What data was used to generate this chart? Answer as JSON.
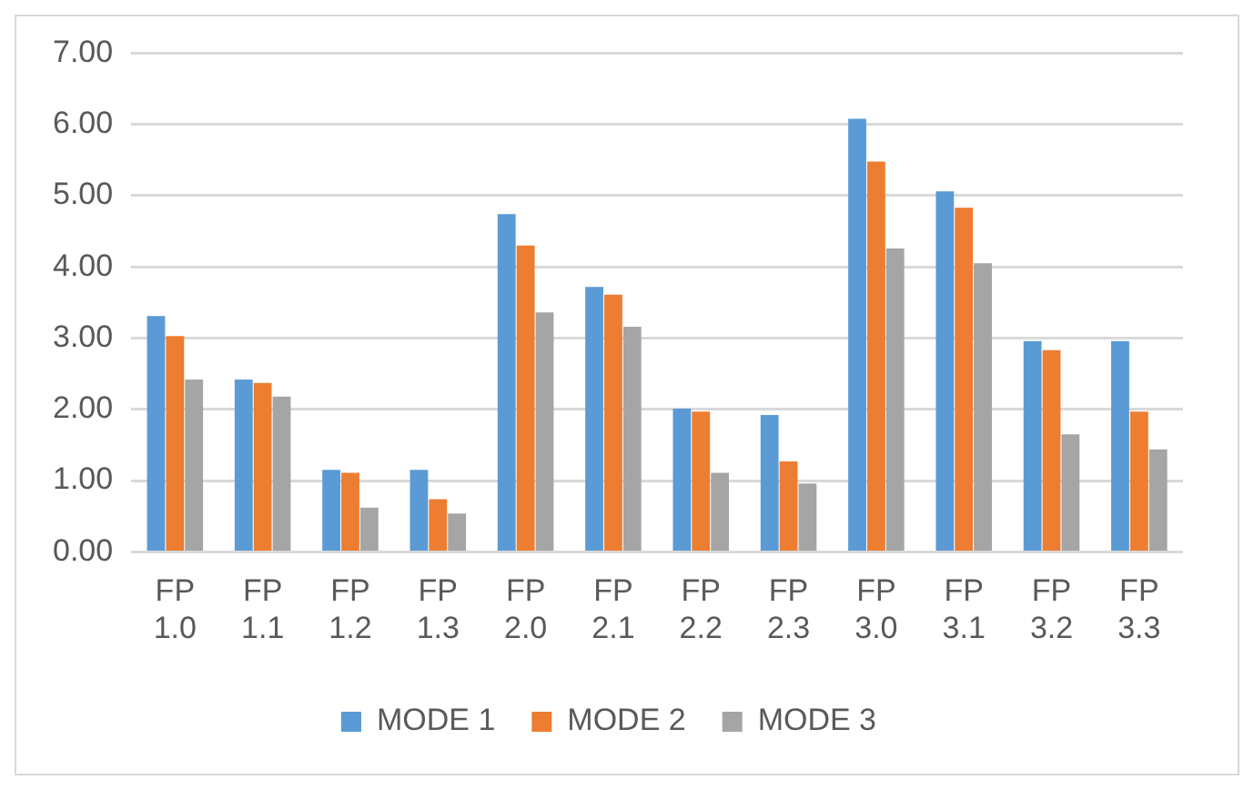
{
  "chart_data": {
    "type": "bar",
    "categories": [
      "FP 1.0",
      "FP 1.1",
      "FP 1.2",
      "FP 1.3",
      "FP 2.0",
      "FP 2.1",
      "FP 2.2",
      "FP 2.3",
      "FP 3.0",
      "FP 3.1",
      "FP 3.2",
      "FP 3.3"
    ],
    "series": [
      {
        "name": "MODE 1",
        "color": "#5b9bd5",
        "values": [
          3.31,
          2.42,
          1.15,
          1.15,
          4.74,
          3.72,
          2.01,
          1.92,
          6.08,
          5.06,
          2.96,
          2.96
        ]
      },
      {
        "name": "MODE 2",
        "color": "#ed7d31",
        "values": [
          3.03,
          2.37,
          1.11,
          0.74,
          4.3,
          3.61,
          1.97,
          1.27,
          5.48,
          4.83,
          2.83,
          1.97
        ]
      },
      {
        "name": "MODE 3",
        "color": "#a5a5a5",
        "values": [
          2.42,
          2.18,
          0.62,
          0.54,
          3.36,
          3.16,
          1.11,
          0.96,
          4.26,
          4.05,
          1.65,
          1.44
        ]
      }
    ],
    "ylim": [
      0,
      7
    ],
    "yticks": [
      {
        "value": 0,
        "label": "0.00"
      },
      {
        "value": 1,
        "label": "1.00"
      },
      {
        "value": 2,
        "label": "2.00"
      },
      {
        "value": 3,
        "label": "3.00"
      },
      {
        "value": 4,
        "label": "4.00"
      },
      {
        "value": 5,
        "label": "5.00"
      },
      {
        "value": 6,
        "label": "6.00"
      },
      {
        "value": 7,
        "label": "7.00"
      }
    ],
    "grid": "y",
    "legend": "bottom"
  }
}
